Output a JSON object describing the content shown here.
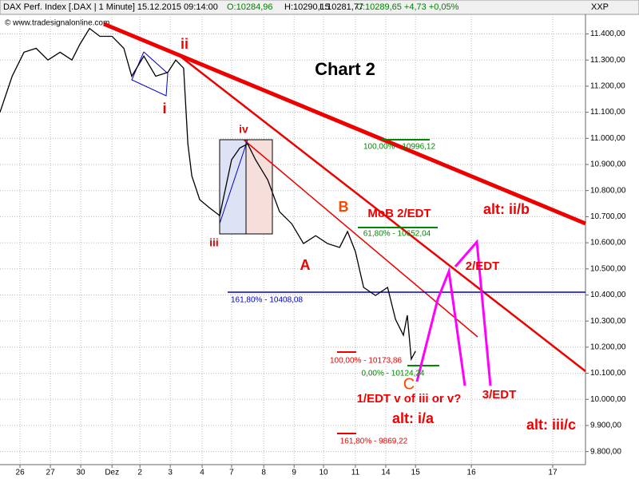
{
  "chart_data": {
    "type": "line",
    "title": "DAX Perf. Index [.DAX | 1 Minute] 15.12.2015 09:14:00",
    "quote": {
      "open": "O:10284,96",
      "high": "H:10290,15",
      "low": "L:10281,77",
      "close": "C:10289,65 +4,73 +0,05%"
    },
    "source": "© www.tradesignalonline.com",
    "axis_label": "XXP",
    "grid": true,
    "series": [
      {
        "name": "DAX",
        "color": "#000000",
        "x": [
          -0.66,
          -0.26,
          0.13,
          0.53,
          0.92,
          1.32,
          1.71,
          1.97,
          2.29,
          2.63,
          3.03,
          3.42,
          3.68,
          4.08,
          4.47,
          4.87,
          5.13,
          5.39,
          5.53,
          5.66,
          5.92,
          6.24,
          6.58,
          6.97,
          7.24,
          7.5,
          7.76,
          8.16,
          8.55,
          8.95,
          9.34,
          9.74,
          10.13,
          10.53,
          10.79,
          11.05,
          11.32,
          11.71,
          12.11,
          12.37,
          12.63,
          12.76,
          12.89,
          13.03
        ],
        "values": [
          11100,
          11238,
          11330,
          11345,
          11300,
          11330,
          11300,
          11360,
          11421,
          11391,
          11391,
          11345,
          11238,
          11315,
          11238,
          11253,
          11300,
          11269,
          10979,
          10856,
          10765,
          10734,
          10704,
          10918,
          10963,
          10979,
          10918,
          10841,
          10719,
          10673,
          10597,
          10627,
          10597,
          10582,
          10643,
          10566,
          10429,
          10398,
          10429,
          10307,
          10246,
          10322,
          10154,
          10185
        ]
      }
    ],
    "xlim": [
      -0.66,
      18.63
    ],
    "xticks": [
      {
        "value": 0,
        "label": "26"
      },
      {
        "value": 1,
        "label": "27"
      },
      {
        "value": 2,
        "label": "30"
      },
      {
        "value": 3.03,
        "label": "Dez"
      },
      {
        "value": 3.95,
        "label": "2"
      },
      {
        "value": 4.95,
        "label": "3"
      },
      {
        "value": 6,
        "label": "4"
      },
      {
        "value": 6.97,
        "label": "7"
      },
      {
        "value": 8.03,
        "label": "8"
      },
      {
        "value": 9.03,
        "label": "9"
      },
      {
        "value": 10,
        "label": "10"
      },
      {
        "value": 11.05,
        "label": "11"
      },
      {
        "value": 12.05,
        "label": "14"
      },
      {
        "value": 13.03,
        "label": "15"
      },
      {
        "value": 14.87,
        "label": "16"
      },
      {
        "value": 17.55,
        "label": "17"
      }
    ],
    "ylim": [
      9750,
      11475
    ],
    "yticks": [
      {
        "value": 9800,
        "label": "9.800,00"
      },
      {
        "value": 9900,
        "label": "9.900,00"
      },
      {
        "value": 10000,
        "label": "10.000,00"
      },
      {
        "value": 10100,
        "label": "10.100,00"
      },
      {
        "value": 10200,
        "label": "10.200,00"
      },
      {
        "value": 10300,
        "label": "10.300,00"
      },
      {
        "value": 10400,
        "label": "10.400,00"
      },
      {
        "value": 10500,
        "label": "10.500,00"
      },
      {
        "value": 10600,
        "label": "10.600,00"
      },
      {
        "value": 10700,
        "label": "10.700,00"
      },
      {
        "value": 10800,
        "label": "10.800,00"
      },
      {
        "value": 10900,
        "label": "10.900,00"
      },
      {
        "value": 11000,
        "label": "11.000,00"
      },
      {
        "value": 11100,
        "label": "11.100,00"
      },
      {
        "value": 11200,
        "label": "11.200,00"
      },
      {
        "value": 11300,
        "label": "11.300,00"
      },
      {
        "value": 11400,
        "label": "11.400,00"
      }
    ],
    "annotations": [
      "ii",
      "i",
      "iv",
      "iii",
      "Chart 2",
      "B",
      "MoB 2/EDT",
      "A",
      "100,00% - 10996,12",
      "61,80% - 10652,04",
      "161,80% - 10408,08",
      "100,00% - 10173,86",
      "0,00% - 10124,24",
      "C",
      "1/EDT v of iii or v?",
      "alt: i/a",
      "161,80% - 9869,22",
      "alt: ii/b",
      "2/EDT",
      "3/EDT",
      "alt: iii/c"
    ]
  }
}
